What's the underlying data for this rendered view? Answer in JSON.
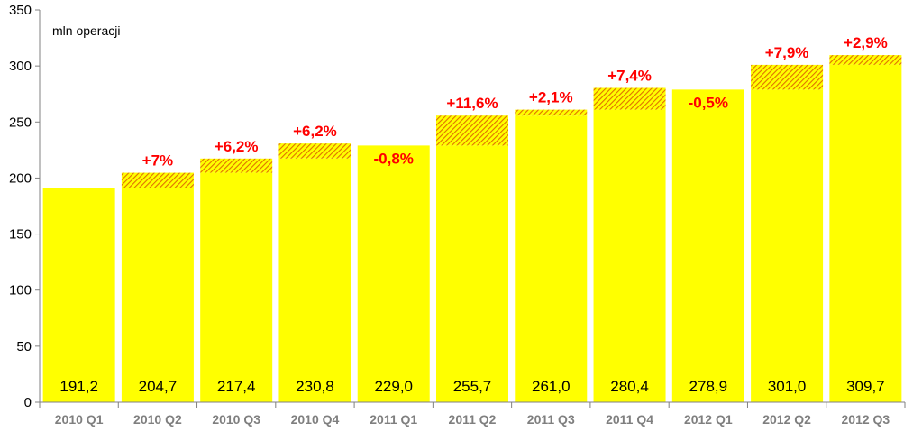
{
  "chart_data": {
    "type": "bar",
    "unit_label": "mln operacji",
    "categories": [
      "2010 Q1",
      "2010 Q2",
      "2010 Q3",
      "2010 Q4",
      "2011 Q1",
      "2011 Q2",
      "2011 Q3",
      "2011 Q4",
      "2012 Q1",
      "2012 Q2",
      "2012 Q3"
    ],
    "values": [
      191.2,
      204.7,
      217.4,
      230.8,
      229.0,
      255.7,
      261.0,
      280.4,
      278.9,
      301.0,
      309.7
    ],
    "value_labels": [
      "191,2",
      "204,7",
      "217,4",
      "230,8",
      "229,0",
      "255,7",
      "261,0",
      "280,4",
      "278,9",
      "301,0",
      "309,7"
    ],
    "growth_labels": [
      "",
      "+7%",
      "+6,2%",
      "+6,2%",
      "-0,8%",
      "+11,6%",
      "+2,1%",
      "+7,4%",
      "-0,5%",
      "+7,9%",
      "+2,9%"
    ],
    "ylim": [
      0,
      350
    ],
    "yticks": [
      0,
      50,
      100,
      150,
      200,
      250,
      300,
      350
    ],
    "grid": false,
    "colors": {
      "bar": "#ffff00",
      "increase_hatch": "#e07000",
      "growth_text": "#ff0000",
      "axis": "#808080"
    }
  }
}
